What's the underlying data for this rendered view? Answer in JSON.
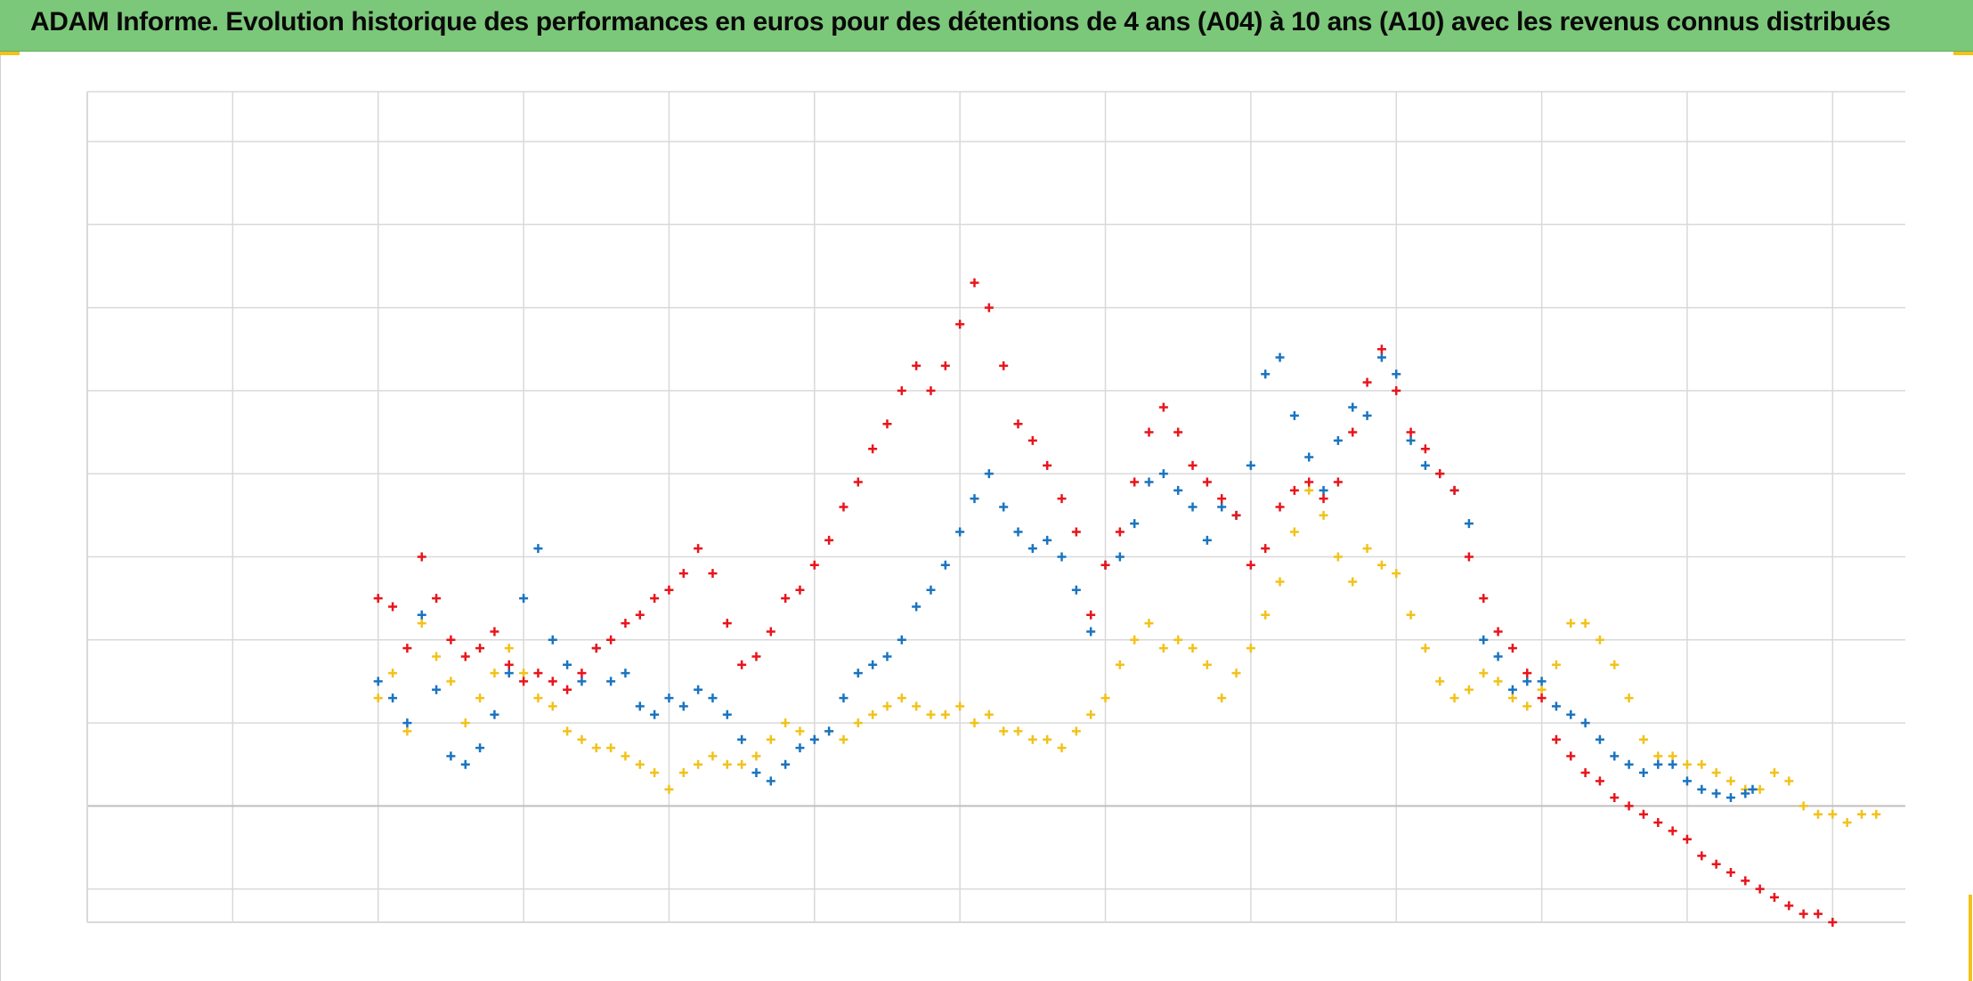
{
  "title": "ADAM Informe. Evolution historique des performances en euros pour des détentions de 4 ans (A04) à 10 ans (A10) avec les revenus connus distribués",
  "colors": {
    "title_background": "#7cc87a",
    "frame_accent": "#f2c21b",
    "grid": "#d9d9d9",
    "baseline": "#bfbfbf"
  },
  "chart_data": {
    "type": "scatter",
    "marker": "plus",
    "title": "ADAM Informe. Evolution historique des performances en euros pour des détentions de 4 ans (A04) à 10 ans (A10) avec les revenus connus distribués",
    "xlabel": "",
    "ylabel": "",
    "xlim": [
      0,
      12.5
    ],
    "ylim": [
      -1.4,
      8.6
    ],
    "grid": true,
    "legend": "none",
    "series": [
      {
        "color": "#f2c21b",
        "points": [
          [
            2.0,
            1.3
          ],
          [
            2.1,
            1.6
          ],
          [
            2.2,
            0.9
          ],
          [
            2.3,
            2.2
          ],
          [
            2.4,
            1.8
          ],
          [
            2.5,
            1.5
          ],
          [
            2.6,
            1.0
          ],
          [
            2.7,
            1.3
          ],
          [
            2.8,
            1.6
          ],
          [
            2.9,
            1.9
          ],
          [
            3.0,
            1.6
          ],
          [
            3.1,
            1.3
          ],
          [
            3.2,
            1.2
          ],
          [
            3.3,
            0.9
          ],
          [
            3.4,
            0.8
          ],
          [
            3.5,
            0.7
          ],
          [
            3.6,
            0.7
          ],
          [
            3.7,
            0.6
          ],
          [
            3.8,
            0.5
          ],
          [
            3.9,
            0.4
          ],
          [
            4.0,
            0.2
          ],
          [
            4.1,
            0.4
          ],
          [
            4.2,
            0.5
          ],
          [
            4.3,
            0.6
          ],
          [
            4.4,
            0.5
          ],
          [
            4.5,
            0.5
          ],
          [
            4.6,
            0.6
          ],
          [
            4.7,
            0.8
          ],
          [
            4.8,
            1.0
          ],
          [
            4.9,
            0.9
          ],
          [
            5.0,
            0.8
          ],
          [
            5.1,
            0.9
          ],
          [
            5.2,
            0.8
          ],
          [
            5.3,
            1.0
          ],
          [
            5.4,
            1.1
          ],
          [
            5.5,
            1.2
          ],
          [
            5.6,
            1.3
          ],
          [
            5.7,
            1.2
          ],
          [
            5.8,
            1.1
          ],
          [
            5.9,
            1.1
          ],
          [
            6.0,
            1.2
          ],
          [
            6.1,
            1.0
          ],
          [
            6.2,
            1.1
          ],
          [
            6.3,
            0.9
          ],
          [
            6.4,
            0.9
          ],
          [
            6.5,
            0.8
          ],
          [
            6.6,
            0.8
          ],
          [
            6.7,
            0.7
          ],
          [
            6.8,
            0.9
          ],
          [
            6.9,
            1.1
          ],
          [
            7.0,
            1.3
          ],
          [
            7.1,
            1.7
          ],
          [
            7.2,
            2.0
          ],
          [
            7.3,
            2.2
          ],
          [
            7.4,
            1.9
          ],
          [
            7.5,
            2.0
          ],
          [
            7.6,
            1.9
          ],
          [
            7.7,
            1.7
          ],
          [
            7.8,
            1.3
          ],
          [
            7.9,
            1.6
          ],
          [
            8.0,
            1.9
          ],
          [
            8.1,
            2.3
          ],
          [
            8.2,
            2.7
          ],
          [
            8.3,
            3.3
          ],
          [
            8.4,
            3.8
          ],
          [
            8.5,
            3.5
          ],
          [
            8.6,
            3.0
          ],
          [
            8.7,
            2.7
          ],
          [
            8.8,
            3.1
          ],
          [
            8.9,
            2.9
          ],
          [
            9.0,
            2.8
          ],
          [
            9.1,
            2.3
          ],
          [
            9.2,
            1.9
          ],
          [
            9.3,
            1.5
          ],
          [
            9.4,
            1.3
          ],
          [
            9.5,
            1.4
          ],
          [
            9.6,
            1.6
          ],
          [
            9.7,
            1.5
          ],
          [
            9.8,
            1.3
          ],
          [
            9.9,
            1.2
          ],
          [
            10.0,
            1.4
          ],
          [
            10.1,
            1.7
          ],
          [
            10.2,
            2.2
          ],
          [
            10.3,
            2.2
          ],
          [
            10.4,
            2.0
          ],
          [
            10.5,
            1.7
          ],
          [
            10.6,
            1.3
          ],
          [
            10.7,
            0.8
          ],
          [
            10.8,
            0.6
          ],
          [
            10.9,
            0.6
          ],
          [
            11.0,
            0.5
          ],
          [
            11.1,
            0.5
          ],
          [
            11.2,
            0.4
          ],
          [
            11.3,
            0.3
          ],
          [
            11.4,
            0.2
          ],
          [
            11.5,
            0.2
          ],
          [
            11.6,
            0.4
          ],
          [
            11.7,
            0.3
          ],
          [
            11.8,
            0.0
          ],
          [
            11.9,
            -0.1
          ],
          [
            12.0,
            -0.1
          ],
          [
            12.1,
            -0.2
          ],
          [
            12.2,
            -0.1
          ],
          [
            12.3,
            -0.1
          ]
        ]
      },
      {
        "color": "#1a74c0",
        "points": [
          [
            2.0,
            1.5
          ],
          [
            2.1,
            1.3
          ],
          [
            2.2,
            1.0
          ],
          [
            2.3,
            2.3
          ],
          [
            2.4,
            1.4
          ],
          [
            2.5,
            0.6
          ],
          [
            2.6,
            0.5
          ],
          [
            2.7,
            0.7
          ],
          [
            2.8,
            1.1
          ],
          [
            2.9,
            1.6
          ],
          [
            3.0,
            2.5
          ],
          [
            3.1,
            3.1
          ],
          [
            3.2,
            2.0
          ],
          [
            3.3,
            1.7
          ],
          [
            3.4,
            1.5
          ],
          [
            3.5,
            1.9
          ],
          [
            3.6,
            1.5
          ],
          [
            3.7,
            1.6
          ],
          [
            3.8,
            1.2
          ],
          [
            3.9,
            1.1
          ],
          [
            4.0,
            1.3
          ],
          [
            4.1,
            1.2
          ],
          [
            4.2,
            1.4
          ],
          [
            4.3,
            1.3
          ],
          [
            4.4,
            1.1
          ],
          [
            4.5,
            0.8
          ],
          [
            4.6,
            0.4
          ],
          [
            4.7,
            0.3
          ],
          [
            4.8,
            0.5
          ],
          [
            4.9,
            0.7
          ],
          [
            5.0,
            0.8
          ],
          [
            5.1,
            0.9
          ],
          [
            5.2,
            1.3
          ],
          [
            5.3,
            1.6
          ],
          [
            5.4,
            1.7
          ],
          [
            5.5,
            1.8
          ],
          [
            5.6,
            2.0
          ],
          [
            5.7,
            2.4
          ],
          [
            5.8,
            2.6
          ],
          [
            5.9,
            2.9
          ],
          [
            6.0,
            3.3
          ],
          [
            6.1,
            3.7
          ],
          [
            6.2,
            4.0
          ],
          [
            6.3,
            3.6
          ],
          [
            6.4,
            3.3
          ],
          [
            6.5,
            3.1
          ],
          [
            6.6,
            3.2
          ],
          [
            6.7,
            3.0
          ],
          [
            6.8,
            2.6
          ],
          [
            6.9,
            2.1
          ],
          [
            7.0,
            2.9
          ],
          [
            7.1,
            3.0
          ],
          [
            7.2,
            3.4
          ],
          [
            7.3,
            3.9
          ],
          [
            7.4,
            4.0
          ],
          [
            7.5,
            3.8
          ],
          [
            7.6,
            3.6
          ],
          [
            7.7,
            3.2
          ],
          [
            7.8,
            3.6
          ],
          [
            7.9,
            3.5
          ],
          [
            8.0,
            4.1
          ],
          [
            8.1,
            5.2
          ],
          [
            8.2,
            5.4
          ],
          [
            8.3,
            4.7
          ],
          [
            8.4,
            4.2
          ],
          [
            8.5,
            3.8
          ],
          [
            8.6,
            4.4
          ],
          [
            8.7,
            4.8
          ],
          [
            8.8,
            4.7
          ],
          [
            8.9,
            5.4
          ],
          [
            9.0,
            5.2
          ],
          [
            9.1,
            4.4
          ],
          [
            9.2,
            4.1
          ],
          [
            9.3,
            4.0
          ],
          [
            9.4,
            3.8
          ],
          [
            9.5,
            3.4
          ],
          [
            9.6,
            2.0
          ],
          [
            9.7,
            1.8
          ],
          [
            9.8,
            1.4
          ],
          [
            9.9,
            1.5
          ],
          [
            10.0,
            1.5
          ],
          [
            10.1,
            1.2
          ],
          [
            10.2,
            1.1
          ],
          [
            10.3,
            1.0
          ],
          [
            10.4,
            0.8
          ],
          [
            10.5,
            0.6
          ],
          [
            10.6,
            0.5
          ],
          [
            10.7,
            0.4
          ],
          [
            10.8,
            0.5
          ],
          [
            10.9,
            0.5
          ],
          [
            11.0,
            0.3
          ],
          [
            11.1,
            0.2
          ],
          [
            11.2,
            0.15
          ],
          [
            11.3,
            0.1
          ],
          [
            11.4,
            0.15
          ],
          [
            11.45,
            0.2
          ]
        ]
      },
      {
        "color": "#e8151b",
        "points": [
          [
            2.0,
            2.5
          ],
          [
            2.1,
            2.4
          ],
          [
            2.2,
            1.9
          ],
          [
            2.3,
            3.0
          ],
          [
            2.4,
            2.5
          ],
          [
            2.5,
            2.0
          ],
          [
            2.6,
            1.8
          ],
          [
            2.7,
            1.9
          ],
          [
            2.8,
            2.1
          ],
          [
            2.9,
            1.7
          ],
          [
            3.0,
            1.5
          ],
          [
            3.1,
            1.6
          ],
          [
            3.2,
            1.5
          ],
          [
            3.3,
            1.4
          ],
          [
            3.4,
            1.6
          ],
          [
            3.5,
            1.9
          ],
          [
            3.6,
            2.0
          ],
          [
            3.7,
            2.2
          ],
          [
            3.8,
            2.3
          ],
          [
            3.9,
            2.5
          ],
          [
            4.0,
            2.6
          ],
          [
            4.1,
            2.8
          ],
          [
            4.2,
            3.1
          ],
          [
            4.3,
            2.8
          ],
          [
            4.4,
            2.2
          ],
          [
            4.5,
            1.7
          ],
          [
            4.6,
            1.8
          ],
          [
            4.7,
            2.1
          ],
          [
            4.8,
            2.5
          ],
          [
            4.9,
            2.6
          ],
          [
            5.0,
            2.9
          ],
          [
            5.1,
            3.2
          ],
          [
            5.2,
            3.6
          ],
          [
            5.3,
            3.9
          ],
          [
            5.4,
            4.3
          ],
          [
            5.5,
            4.6
          ],
          [
            5.6,
            5.0
          ],
          [
            5.7,
            5.3
          ],
          [
            5.8,
            5.0
          ],
          [
            5.9,
            5.3
          ],
          [
            6.0,
            5.8
          ],
          [
            6.1,
            6.3
          ],
          [
            6.2,
            6.0
          ],
          [
            6.3,
            5.3
          ],
          [
            6.4,
            4.6
          ],
          [
            6.5,
            4.4
          ],
          [
            6.6,
            4.1
          ],
          [
            6.7,
            3.7
          ],
          [
            6.8,
            3.3
          ],
          [
            6.9,
            2.3
          ],
          [
            7.0,
            2.9
          ],
          [
            7.1,
            3.3
          ],
          [
            7.2,
            3.9
          ],
          [
            7.3,
            4.5
          ],
          [
            7.4,
            4.8
          ],
          [
            7.5,
            4.5
          ],
          [
            7.6,
            4.1
          ],
          [
            7.7,
            3.9
          ],
          [
            7.8,
            3.7
          ],
          [
            7.9,
            3.5
          ],
          [
            8.0,
            2.9
          ],
          [
            8.1,
            3.1
          ],
          [
            8.2,
            3.6
          ],
          [
            8.3,
            3.8
          ],
          [
            8.4,
            3.9
          ],
          [
            8.5,
            3.7
          ],
          [
            8.6,
            3.9
          ],
          [
            8.7,
            4.5
          ],
          [
            8.8,
            5.1
          ],
          [
            8.9,
            5.5
          ],
          [
            9.0,
            5.0
          ],
          [
            9.1,
            4.5
          ],
          [
            9.2,
            4.3
          ],
          [
            9.3,
            4.0
          ],
          [
            9.4,
            3.8
          ],
          [
            9.5,
            3.0
          ],
          [
            9.6,
            2.5
          ],
          [
            9.7,
            2.1
          ],
          [
            9.8,
            1.9
          ],
          [
            9.9,
            1.6
          ],
          [
            10.0,
            1.3
          ],
          [
            10.1,
            0.8
          ],
          [
            10.2,
            0.6
          ],
          [
            10.3,
            0.4
          ],
          [
            10.4,
            0.3
          ],
          [
            10.5,
            0.1
          ],
          [
            10.6,
            0.0
          ],
          [
            10.7,
            -0.1
          ],
          [
            10.8,
            -0.2
          ],
          [
            10.9,
            -0.3
          ],
          [
            11.0,
            -0.4
          ],
          [
            11.1,
            -0.6
          ],
          [
            11.2,
            -0.7
          ],
          [
            11.3,
            -0.8
          ],
          [
            11.4,
            -0.9
          ],
          [
            11.5,
            -1.0
          ],
          [
            11.6,
            -1.1
          ],
          [
            11.7,
            -1.2
          ],
          [
            11.8,
            -1.3
          ],
          [
            11.9,
            -1.3
          ],
          [
            12.0,
            -1.4
          ]
        ]
      }
    ]
  }
}
